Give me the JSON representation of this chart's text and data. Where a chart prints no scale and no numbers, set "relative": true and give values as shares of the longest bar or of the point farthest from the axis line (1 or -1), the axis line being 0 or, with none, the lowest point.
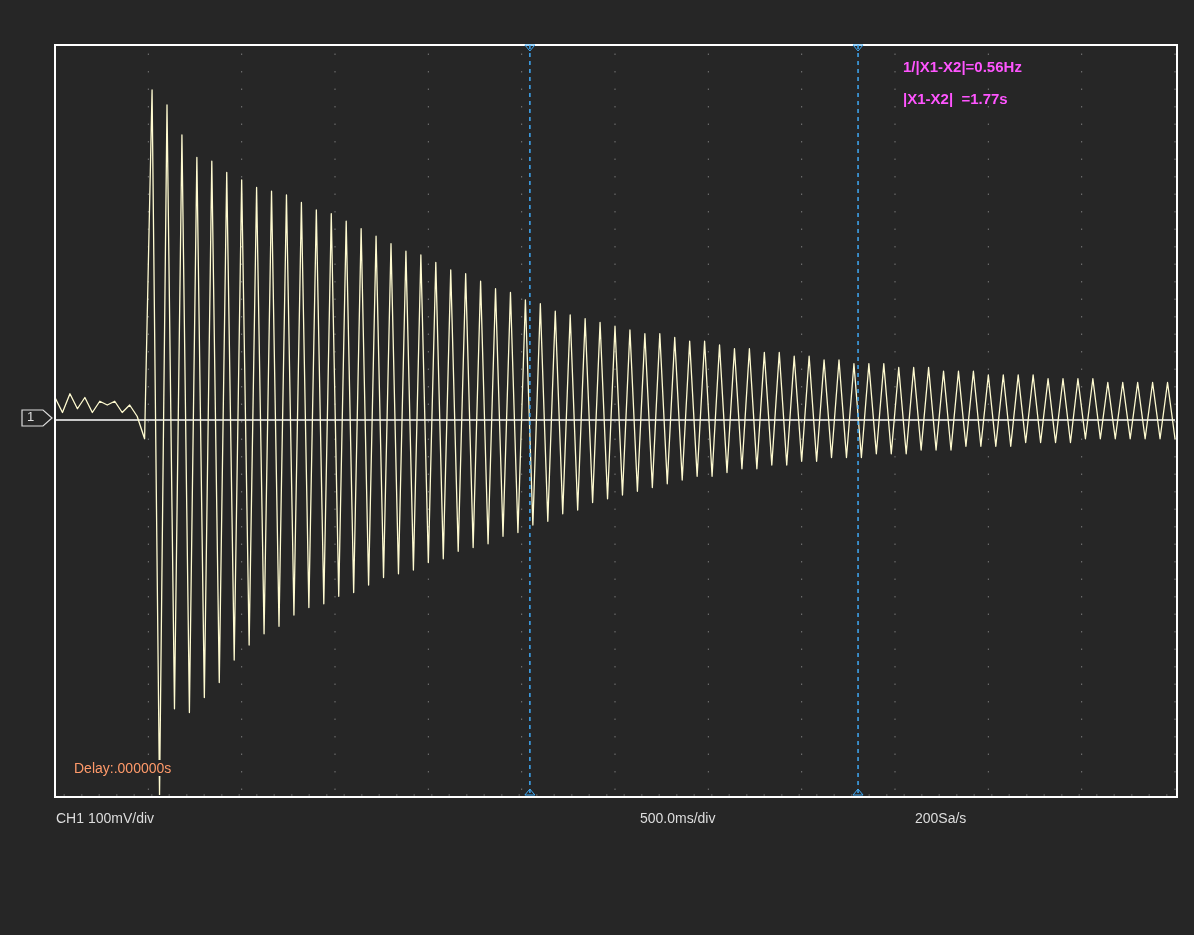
{
  "chart_data": {
    "type": "line",
    "relative": true,
    "grid": true,
    "categories": [
      null,
      null,
      null,
      null,
      null,
      null,
      null,
      null,
      null,
      null,
      null,
      null,
      null,
      null,
      null,
      null,
      null,
      null,
      null,
      null,
      null,
      null,
      null,
      null,
      null,
      null,
      null,
      null,
      null,
      null,
      null,
      null,
      null,
      null,
      null,
      null,
      null,
      null,
      null,
      null,
      null,
      null,
      null,
      null,
      null,
      null,
      null,
      null,
      null,
      null,
      null,
      null,
      null,
      null,
      null,
      null,
      null,
      null,
      null,
      null,
      null,
      null,
      null,
      null,
      null,
      null,
      null,
      null,
      null,
      null,
      null,
      null,
      null,
      null,
      null,
      null,
      null,
      null,
      null,
      null,
      null,
      null,
      null,
      null,
      null,
      null,
      null,
      null,
      null,
      null,
      null,
      null,
      null,
      null,
      null,
      null,
      null,
      null,
      null,
      null,
      null,
      null,
      null,
      null,
      null,
      null,
      null,
      null,
      null,
      null,
      null,
      null,
      null,
      null,
      null,
      null,
      null,
      null,
      null,
      null,
      null,
      null,
      null,
      null,
      null,
      null,
      null,
      null,
      null,
      null,
      null,
      null,
      null,
      null,
      null,
      null,
      null,
      null,
      null,
      null,
      null,
      null,
      null,
      null,
      null,
      null,
      null,
      null,
      null,
      null,
      null
    ],
    "series": [
      {
        "color": "#fffbd0",
        "values": [
          0.06,
          0.02,
          0.07,
          0.03,
          0.06,
          0.02,
          0.05,
          0.04,
          0.05,
          0.02,
          0.04,
          0.01,
          -0.05,
          0.88,
          -1.0,
          0.84,
          -0.77,
          0.76,
          -0.78,
          0.7,
          -0.74,
          0.69,
          -0.7,
          0.66,
          -0.64,
          0.64,
          -0.6,
          0.62,
          -0.57,
          0.61,
          -0.55,
          0.6,
          -0.52,
          0.58,
          -0.5,
          0.56,
          -0.49,
          0.55,
          -0.47,
          0.53,
          -0.46,
          0.51,
          -0.44,
          0.49,
          -0.42,
          0.47,
          -0.41,
          0.45,
          -0.4,
          0.44,
          -0.38,
          0.42,
          -0.37,
          0.4,
          -0.35,
          0.39,
          -0.34,
          0.37,
          -0.33,
          0.35,
          -0.31,
          0.34,
          -0.3,
          0.32,
          -0.28,
          0.31,
          -0.27,
          0.29,
          -0.25,
          0.28,
          -0.24,
          0.27,
          -0.22,
          0.26,
          -0.21,
          0.25,
          -0.2,
          0.24,
          -0.19,
          0.23,
          -0.18,
          0.23,
          -0.17,
          0.22,
          -0.16,
          0.21,
          -0.15,
          0.21,
          -0.15,
          0.2,
          -0.14,
          0.19,
          -0.13,
          0.19,
          -0.13,
          0.18,
          -0.12,
          0.18,
          -0.12,
          0.17,
          -0.11,
          0.17,
          -0.11,
          0.16,
          -0.1,
          0.16,
          -0.1,
          0.15,
          -0.1,
          0.15,
          -0.09,
          0.15,
          -0.09,
          0.14,
          -0.09,
          0.14,
          -0.08,
          0.14,
          -0.08,
          0.13,
          -0.08,
          0.13,
          -0.07,
          0.13,
          -0.07,
          0.12,
          -0.07,
          0.12,
          -0.07,
          0.12,
          -0.06,
          0.12,
          -0.06,
          0.11,
          -0.06,
          0.11,
          -0.06,
          0.11,
          -0.05,
          0.11,
          -0.05,
          0.1,
          -0.05,
          0.1,
          -0.05,
          0.1,
          -0.05,
          0.1,
          -0.05,
          0.1,
          -0.05
        ]
      }
    ],
    "annotations": [
      "1/|X1-X2|=0.56Hz",
      "|X1-X2|  =1.77s",
      "Delay:.000000s",
      "CH1 100mV/div",
      "500.0ms/div",
      "200Sa/s",
      "1"
    ]
  }
}
